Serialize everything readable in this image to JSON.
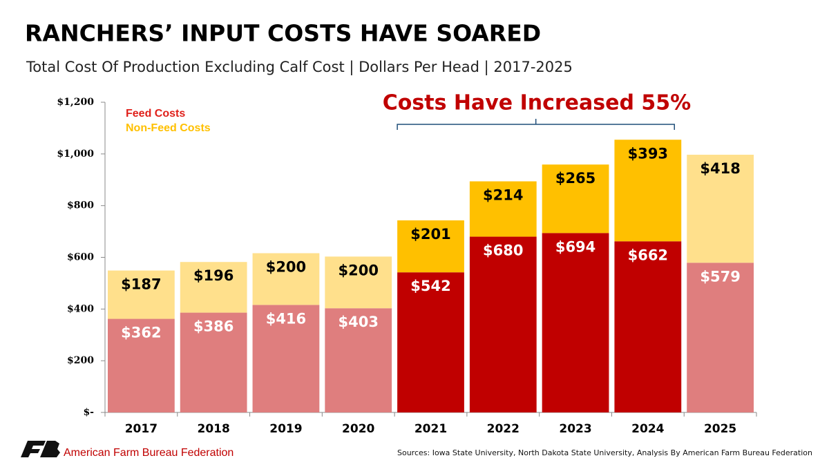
{
  "chart_data": {
    "type": "stacked_bar",
    "title": "RANCHERS’ INPUT COSTS HAVE SOARED",
    "subtitle": "Total Cost Of Production Excluding Calf Cost | Dollars Per Head | 2017-2025",
    "annotation": "Costs Have Increased 55%",
    "organization": "American Farm Bureau Federation",
    "source": "Sources: Iowa State University, North Dakota State University, Analysis By American Farm Bureau Federation",
    "categories": [
      "2017",
      "2018",
      "2019",
      "2020",
      "2021",
      "2022",
      "2023",
      "2024",
      "2025"
    ],
    "series": [
      {
        "name": "Feed Costs",
        "color": "#e0201a",
        "colors": [
          "#df7e7e",
          "#df7e7e",
          "#df7e7e",
          "#df7e7e",
          "#c00000",
          "#c00000",
          "#c00000",
          "#c00000",
          "#df7e7e"
        ],
        "values": [
          362,
          386,
          416,
          403,
          542,
          680,
          694,
          662,
          579
        ],
        "value_labels": [
          "$362",
          "$386",
          "$416",
          "$403",
          "$542",
          "$680",
          "$694",
          "$662",
          "$579"
        ]
      },
      {
        "name": "Non-Feed Costs",
        "color": "#ffc000",
        "colors": [
          "#ffe08c",
          "#ffe08c",
          "#ffe08c",
          "#ffe08c",
          "#ffc000",
          "#ffc000",
          "#ffc000",
          "#ffc000",
          "#ffe08c"
        ],
        "values": [
          187,
          196,
          200,
          200,
          201,
          214,
          265,
          393,
          418
        ],
        "value_labels": [
          "$187",
          "$196",
          "$200",
          "$200",
          "$201",
          "$214",
          "$265",
          "$393",
          "$418"
        ]
      }
    ],
    "ylim": [
      0,
      1200
    ],
    "yticks": [
      {
        "value": 0,
        "label": "$-"
      },
      {
        "value": 200,
        "label": "$200"
      },
      {
        "value": 400,
        "label": "$400"
      },
      {
        "value": 600,
        "label": "$600"
      },
      {
        "value": 800,
        "label": "$800"
      },
      {
        "value": 1000,
        "label": "$1,000"
      },
      {
        "value": 1200,
        "label": "$1,200"
      }
    ],
    "legend": "upper left",
    "grid": false
  }
}
